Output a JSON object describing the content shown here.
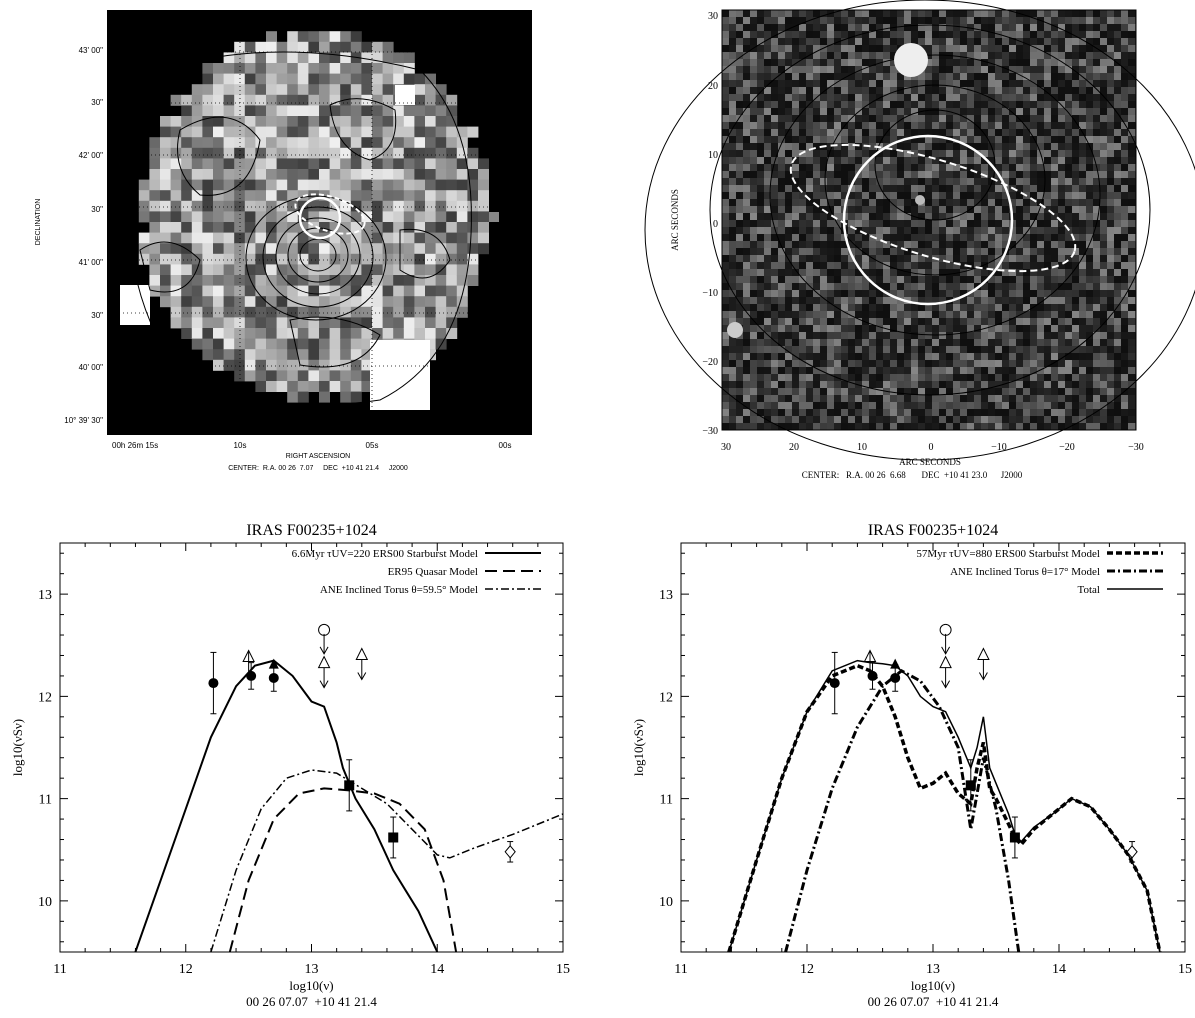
{
  "panel_tl": {
    "dec_label": "DECLINATION",
    "ra_label": "RIGHT ASCENSION",
    "center": "CENTER:  R.A. 00 26  7.07     DEC  +10 41 21.4     J2000",
    "y_ticks": [
      "43' 00\"",
      "30\"",
      "42' 00\"",
      "30\"",
      "41' 00\"",
      "30\"",
      "40' 00\"",
      "10° 39' 30\""
    ],
    "x_ticks": [
      "00h 26m 15s",
      "10s",
      "05s",
      "00s"
    ]
  },
  "panel_tr": {
    "ylabel": "ARC SECONDS",
    "xlabel": "ARC SECONDS",
    "center": "CENTER:   R.A. 00 26  6.68       DEC  +10 41 23.0      J2000",
    "y_ticks": [
      "30",
      "20",
      "10",
      "0",
      "−10",
      "−20",
      "−30"
    ],
    "x_ticks": [
      "30",
      "20",
      "10",
      "0",
      "−10",
      "−20",
      "−30"
    ]
  },
  "chart_data": [
    {
      "type": "line",
      "title": "IRAS F00235+1024",
      "xlabel": "log10(ν)",
      "ylabel": "log10(νSν)",
      "subtitle": "00 26 07.07  +10 41 21.4",
      "xlim": [
        11,
        15
      ],
      "ylim": [
        9.5,
        13.5
      ],
      "x_ticks": [
        "11",
        "12",
        "13",
        "14",
        "15"
      ],
      "y_ticks": [
        "10",
        "11",
        "12",
        "13"
      ],
      "legend": [
        "6.6Myr τUV=220 ERS00 Starburst Model",
        "ER95 Quasar Model",
        "ANE Inclined Torus θ=59.5° Model"
      ],
      "series": [
        {
          "name": "6.6Myr τUV=220 ERS00 Starburst Model",
          "x": [
            11.6,
            11.8,
            12.0,
            12.2,
            12.4,
            12.55,
            12.7,
            12.85,
            13.0,
            13.1,
            13.2,
            13.25,
            13.3,
            13.35,
            13.5,
            13.65,
            13.75,
            13.85,
            14.0
          ],
          "y": [
            9.5,
            10.2,
            10.9,
            11.6,
            12.1,
            12.3,
            12.35,
            12.2,
            11.95,
            11.9,
            11.55,
            11.3,
            11.15,
            11.0,
            10.7,
            10.3,
            10.1,
            9.9,
            9.5
          ]
        },
        {
          "name": "ER95 Quasar Model",
          "x": [
            12.35,
            12.5,
            12.7,
            12.9,
            13.1,
            13.3,
            13.5,
            13.7,
            13.9,
            14.05,
            14.15
          ],
          "y": [
            9.5,
            10.2,
            10.8,
            11.05,
            11.1,
            11.08,
            11.05,
            10.95,
            10.7,
            10.2,
            9.5
          ]
        },
        {
          "name": "ANE Inclined Torus θ=59.5° Model",
          "x": [
            12.2,
            12.4,
            12.6,
            12.8,
            13.0,
            13.2,
            13.4,
            13.6,
            13.8,
            14.0,
            14.1,
            14.3,
            14.6,
            15.0
          ],
          "y": [
            9.5,
            10.3,
            10.9,
            11.2,
            11.28,
            11.25,
            11.1,
            10.95,
            10.7,
            10.45,
            10.42,
            10.52,
            10.65,
            10.85
          ]
        }
      ],
      "points": [
        {
          "x": 12.22,
          "y": 12.13,
          "marker": "filled-circle",
          "err": 0.3
        },
        {
          "x": 12.52,
          "y": 12.2,
          "marker": "filled-circle",
          "err": 0.13
        },
        {
          "x": 12.7,
          "y": 12.18,
          "marker": "filled-circle",
          "err": 0.13
        },
        {
          "x": 12.7,
          "y": 12.31,
          "marker": "filled-triangle",
          "err": 0
        },
        {
          "x": 13.3,
          "y": 11.13,
          "marker": "filled-square",
          "err": 0.25
        },
        {
          "x": 13.65,
          "y": 10.62,
          "marker": "filled-square",
          "err": 0.2
        },
        {
          "x": 14.58,
          "y": 10.48,
          "marker": "open-diamond",
          "err": 0.1
        }
      ],
      "limits": [
        {
          "x": 12.5,
          "y": 12.38,
          "marker": "open-triangle",
          "dir": "lower"
        },
        {
          "x": 13.1,
          "y": 12.65,
          "marker": "open-circle",
          "dir": "upper"
        },
        {
          "x": 13.1,
          "y": 12.32,
          "marker": "open-triangle",
          "dir": "upper"
        },
        {
          "x": 13.4,
          "y": 12.4,
          "marker": "open-triangle",
          "dir": "upper"
        }
      ]
    },
    {
      "type": "line",
      "title": "IRAS F00235+1024",
      "xlabel": "log10(ν)",
      "ylabel": "log10(νSν)",
      "subtitle": "00 26 07.07  +10 41 21.4",
      "xlim": [
        11,
        15
      ],
      "ylim": [
        9.5,
        13.5
      ],
      "x_ticks": [
        "11",
        "12",
        "13",
        "14",
        "15"
      ],
      "y_ticks": [
        "10",
        "11",
        "12",
        "13"
      ],
      "legend": [
        "57Myr τUV=880 ERS00 Starburst Model",
        "ANE Inclined Torus θ=17° Model",
        "Total"
      ],
      "series": [
        {
          "name": "57Myr τUV=880 ERS00 Starburst Model",
          "x": [
            11.38,
            11.6,
            11.8,
            12.0,
            12.2,
            12.4,
            12.5,
            12.6,
            12.7,
            12.8,
            12.9,
            13.0,
            13.1,
            13.2,
            13.3,
            13.35,
            13.4,
            13.45,
            13.5,
            13.6,
            13.65,
            13.7,
            13.8,
            13.95,
            14.1,
            14.25,
            14.4,
            14.55,
            14.7,
            14.8
          ],
          "y": [
            9.5,
            10.4,
            11.2,
            11.85,
            12.2,
            12.3,
            12.25,
            12.1,
            11.8,
            11.4,
            11.1,
            11.15,
            11.25,
            11.05,
            10.95,
            11.3,
            11.55,
            11.1,
            11.0,
            10.75,
            10.62,
            10.55,
            10.7,
            10.85,
            11.0,
            10.92,
            10.7,
            10.45,
            10.1,
            9.5
          ]
        },
        {
          "name": "ANE Inclined Torus θ=17° Model",
          "x": [
            11.83,
            12.0,
            12.2,
            12.4,
            12.6,
            12.75,
            12.9,
            13.05,
            13.2,
            13.3,
            13.4,
            13.5,
            13.6,
            13.68
          ],
          "y": [
            9.5,
            10.3,
            11.1,
            11.7,
            12.1,
            12.25,
            12.15,
            11.9,
            11.5,
            10.7,
            11.4,
            10.9,
            10.2,
            9.5
          ]
        },
        {
          "name": "Total",
          "x": [
            11.38,
            11.6,
            11.8,
            12.0,
            12.2,
            12.4,
            12.5,
            12.6,
            12.7,
            12.8,
            12.9,
            13.0,
            13.1,
            13.2,
            13.3,
            13.35,
            13.4,
            13.45,
            13.5,
            13.6,
            13.65,
            13.7,
            13.8,
            13.95,
            14.1,
            14.25,
            14.4,
            14.55,
            14.7,
            14.8
          ],
          "y": [
            9.5,
            10.4,
            11.2,
            11.85,
            12.25,
            12.35,
            12.33,
            12.32,
            12.3,
            12.2,
            12.0,
            11.9,
            11.85,
            11.6,
            11.3,
            11.5,
            11.8,
            11.3,
            11.15,
            10.85,
            10.65,
            10.58,
            10.72,
            10.85,
            11.0,
            10.92,
            10.7,
            10.45,
            10.1,
            9.5
          ]
        }
      ],
      "points": [
        {
          "x": 12.22,
          "y": 12.13,
          "marker": "filled-circle",
          "err": 0.3
        },
        {
          "x": 12.52,
          "y": 12.2,
          "marker": "filled-circle",
          "err": 0.13
        },
        {
          "x": 12.7,
          "y": 12.18,
          "marker": "filled-circle",
          "err": 0.13
        },
        {
          "x": 12.7,
          "y": 12.31,
          "marker": "filled-triangle",
          "err": 0
        },
        {
          "x": 13.3,
          "y": 11.13,
          "marker": "filled-square",
          "err": 0.25
        },
        {
          "x": 13.65,
          "y": 10.62,
          "marker": "filled-square",
          "err": 0.2
        },
        {
          "x": 14.58,
          "y": 10.48,
          "marker": "open-diamond",
          "err": 0.1
        }
      ],
      "limits": [
        {
          "x": 12.5,
          "y": 12.38,
          "marker": "open-triangle",
          "dir": "lower"
        },
        {
          "x": 13.1,
          "y": 12.65,
          "marker": "open-circle",
          "dir": "upper"
        },
        {
          "x": 13.1,
          "y": 12.32,
          "marker": "open-triangle",
          "dir": "upper"
        },
        {
          "x": 13.4,
          "y": 12.4,
          "marker": "open-triangle",
          "dir": "upper"
        }
      ]
    }
  ]
}
